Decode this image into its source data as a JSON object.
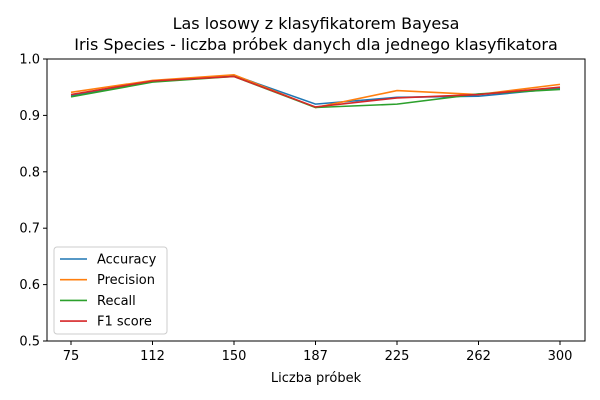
{
  "chart_data": {
    "type": "line",
    "title_lines": [
      "Las losowy z klasyfikatorem Bayesa",
      "Iris Species - liczba próbek danych dla jednego klasyfikatora"
    ],
    "xlabel": "Liczba próbek",
    "ylabel": "",
    "categories": [
      "75",
      "112",
      "150",
      "187",
      "225",
      "262",
      "300"
    ],
    "ylim": [
      0.5,
      1.0
    ],
    "yticks": [
      "0.5",
      "0.6",
      "0.7",
      "0.8",
      "0.9",
      "1.0"
    ],
    "grid": false,
    "legend_position": "lower-left",
    "series": [
      {
        "name": "Accuracy",
        "color": "#1f77b4",
        "values": [
          0.935,
          0.96,
          0.971,
          0.92,
          0.932,
          0.934,
          0.948
        ]
      },
      {
        "name": "Precision",
        "color": "#ff7f0e",
        "values": [
          0.941,
          0.962,
          0.972,
          0.914,
          0.944,
          0.937,
          0.955
        ]
      },
      {
        "name": "Recall",
        "color": "#2ca02c",
        "values": [
          0.933,
          0.959,
          0.969,
          0.914,
          0.92,
          0.938,
          0.946
        ]
      },
      {
        "name": "F1 score",
        "color": "#d62728",
        "values": [
          0.937,
          0.961,
          0.969,
          0.915,
          0.931,
          0.937,
          0.95
        ]
      }
    ]
  }
}
